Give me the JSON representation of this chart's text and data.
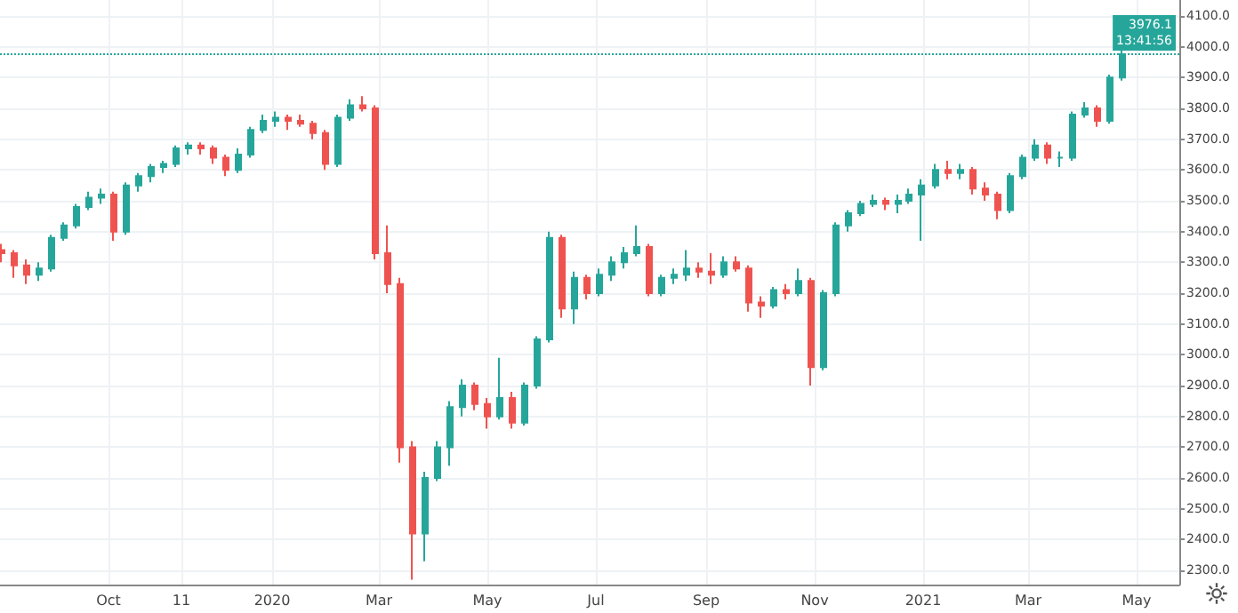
{
  "chart_data": {
    "type": "candlestick",
    "x": [
      "2019-08-02",
      "2019-08-09",
      "2019-08-16",
      "2019-08-23",
      "2019-08-30",
      "2019-09-06",
      "2019-09-13",
      "2019-09-20",
      "2019-09-27",
      "2019-10-04",
      "2019-10-11",
      "2019-10-18",
      "2019-10-25",
      "2019-11-01",
      "2019-11-08",
      "2019-11-15",
      "2019-11-22",
      "2019-11-29",
      "2019-12-06",
      "2019-12-13",
      "2019-12-20",
      "2019-12-27",
      "2020-01-03",
      "2020-01-10",
      "2020-01-17",
      "2020-01-24",
      "2020-01-31",
      "2020-02-07",
      "2020-02-14",
      "2020-02-21",
      "2020-02-28",
      "2020-03-06",
      "2020-03-13",
      "2020-03-20",
      "2020-03-27",
      "2020-04-03",
      "2020-04-10",
      "2020-04-17",
      "2020-04-24",
      "2020-05-01",
      "2020-05-08",
      "2020-05-15",
      "2020-05-22",
      "2020-05-29",
      "2020-06-05",
      "2020-06-12",
      "2020-06-19",
      "2020-06-26",
      "2020-07-03",
      "2020-07-10",
      "2020-07-17",
      "2020-07-24",
      "2020-07-31",
      "2020-08-07",
      "2020-08-14",
      "2020-08-21",
      "2020-08-28",
      "2020-09-04",
      "2020-09-11",
      "2020-09-18",
      "2020-09-25",
      "2020-10-02",
      "2020-10-09",
      "2020-10-16",
      "2020-10-23",
      "2020-10-30",
      "2020-11-06",
      "2020-11-13",
      "2020-11-20",
      "2020-11-27",
      "2020-12-04",
      "2020-12-11",
      "2020-12-18",
      "2020-12-24",
      "2020-12-31",
      "2021-01-08",
      "2021-01-15",
      "2021-01-22",
      "2021-01-29",
      "2021-02-05",
      "2021-02-12",
      "2021-02-19",
      "2021-02-26",
      "2021-03-05",
      "2021-03-12",
      "2021-03-19",
      "2021-03-26",
      "2021-04-02",
      "2021-04-09",
      "2021-04-16",
      "2021-04-23"
    ],
    "ohlc": [
      [
        3340,
        3360,
        3300,
        3330
      ],
      [
        3330,
        3340,
        3250,
        3290
      ],
      [
        3290,
        3310,
        3230,
        3260
      ],
      [
        3260,
        3300,
        3240,
        3280
      ],
      [
        3280,
        3390,
        3270,
        3380
      ],
      [
        3380,
        3430,
        3370,
        3420
      ],
      [
        3420,
        3490,
        3410,
        3480
      ],
      [
        3480,
        3530,
        3470,
        3510
      ],
      [
        3510,
        3540,
        3490,
        3520
      ],
      [
        3520,
        3530,
        3370,
        3400
      ],
      [
        3400,
        3560,
        3390,
        3550
      ],
      [
        3550,
        3590,
        3530,
        3580
      ],
      [
        3580,
        3620,
        3560,
        3610
      ],
      [
        3610,
        3630,
        3590,
        3620
      ],
      [
        3620,
        3680,
        3610,
        3670
      ],
      [
        3670,
        3690,
        3650,
        3680
      ],
      [
        3680,
        3690,
        3650,
        3670
      ],
      [
        3670,
        3680,
        3620,
        3640
      ],
      [
        3640,
        3650,
        3580,
        3600
      ],
      [
        3600,
        3670,
        3590,
        3650
      ],
      [
        3650,
        3740,
        3640,
        3730
      ],
      [
        3730,
        3780,
        3720,
        3760
      ],
      [
        3760,
        3790,
        3740,
        3770
      ],
      [
        3770,
        3780,
        3730,
        3760
      ],
      [
        3760,
        3780,
        3740,
        3750
      ],
      [
        3750,
        3760,
        3700,
        3720
      ],
      [
        3720,
        3730,
        3600,
        3620
      ],
      [
        3620,
        3780,
        3610,
        3770
      ],
      [
        3770,
        3830,
        3760,
        3810
      ],
      [
        3810,
        3840,
        3790,
        3800
      ],
      [
        3800,
        3810,
        3310,
        3330
      ],
      [
        3330,
        3420,
        3200,
        3230
      ],
      [
        3230,
        3250,
        2650,
        2700
      ],
      [
        2700,
        2720,
        2270,
        2420
      ],
      [
        2420,
        2620,
        2330,
        2600
      ],
      [
        2600,
        2720,
        2590,
        2700
      ],
      [
        2700,
        2850,
        2640,
        2830
      ],
      [
        2830,
        2920,
        2800,
        2900
      ],
      [
        2900,
        2910,
        2820,
        2840
      ],
      [
        2840,
        2860,
        2760,
        2800
      ],
      [
        2800,
        2990,
        2790,
        2860
      ],
      [
        2860,
        2880,
        2760,
        2780
      ],
      [
        2780,
        2910,
        2770,
        2900
      ],
      [
        2900,
        3060,
        2890,
        3050
      ],
      [
        3050,
        3400,
        3040,
        3380
      ],
      [
        3380,
        3390,
        3120,
        3150
      ],
      [
        3150,
        3270,
        3100,
        3250
      ],
      [
        3250,
        3260,
        3180,
        3200
      ],
      [
        3200,
        3280,
        3190,
        3260
      ],
      [
        3260,
        3320,
        3240,
        3300
      ],
      [
        3300,
        3350,
        3280,
        3330
      ],
      [
        3330,
        3420,
        3320,
        3350
      ],
      [
        3350,
        3360,
        3190,
        3200
      ],
      [
        3200,
        3260,
        3190,
        3250
      ],
      [
        3250,
        3280,
        3230,
        3260
      ],
      [
        3260,
        3340,
        3240,
        3280
      ],
      [
        3280,
        3300,
        3250,
        3270
      ],
      [
        3270,
        3330,
        3230,
        3260
      ],
      [
        3260,
        3320,
        3250,
        3300
      ],
      [
        3300,
        3320,
        3270,
        3280
      ],
      [
        3280,
        3290,
        3140,
        3170
      ],
      [
        3170,
        3190,
        3120,
        3160
      ],
      [
        3160,
        3220,
        3150,
        3210
      ],
      [
        3210,
        3230,
        3180,
        3200
      ],
      [
        3200,
        3280,
        3190,
        3240
      ],
      [
        3240,
        3250,
        2900,
        2960
      ],
      [
        2960,
        3210,
        2950,
        3200
      ],
      [
        3200,
        3430,
        3190,
        3420
      ],
      [
        3420,
        3470,
        3400,
        3460
      ],
      [
        3460,
        3500,
        3450,
        3490
      ],
      [
        3490,
        3520,
        3480,
        3500
      ],
      [
        3500,
        3510,
        3470,
        3490
      ],
      [
        3490,
        3520,
        3460,
        3500
      ],
      [
        3500,
        3540,
        3490,
        3520
      ],
      [
        3520,
        3570,
        3370,
        3550
      ],
      [
        3550,
        3620,
        3540,
        3600
      ],
      [
        3600,
        3630,
        3570,
        3590
      ],
      [
        3590,
        3620,
        3570,
        3600
      ],
      [
        3600,
        3610,
        3520,
        3540
      ],
      [
        3540,
        3560,
        3500,
        3520
      ],
      [
        3520,
        3530,
        3440,
        3470
      ],
      [
        3470,
        3590,
        3460,
        3580
      ],
      [
        3580,
        3650,
        3570,
        3640
      ],
      [
        3640,
        3700,
        3630,
        3680
      ],
      [
        3680,
        3690,
        3620,
        3640
      ],
      [
        3640,
        3660,
        3610,
        3640
      ],
      [
        3640,
        3790,
        3630,
        3780
      ],
      [
        3780,
        3820,
        3770,
        3800
      ],
      [
        3800,
        3810,
        3740,
        3760
      ],
      [
        3760,
        3910,
        3750,
        3900
      ],
      [
        3900,
        3990,
        3890,
        3976.1
      ]
    ],
    "colors": [
      "#ef5350",
      "#ef5350",
      "#ef5350",
      "#26a69a",
      "#26a69a",
      "#26a69a",
      "#26a69a",
      "#26a69a",
      "#26a69a",
      "#ef5350",
      "#26a69a",
      "#26a69a",
      "#26a69a",
      "#26a69a",
      "#26a69a",
      "#26a69a",
      "#ef5350",
      "#ef5350",
      "#ef5350",
      "#26a69a",
      "#26a69a",
      "#26a69a",
      "#26a69a",
      "#ef5350",
      "#ef5350",
      "#ef5350",
      "#ef5350",
      "#26a69a",
      "#26a69a",
      "#ef5350",
      "#ef5350",
      "#ef5350",
      "#ef5350",
      "#ef5350",
      "#26a69a",
      "#26a69a",
      "#26a69a",
      "#26a69a",
      "#ef5350",
      "#ef5350",
      "#26a69a",
      "#ef5350",
      "#26a69a",
      "#26a69a",
      "#26a69a",
      "#ef5350",
      "#26a69a",
      "#ef5350",
      "#26a69a",
      "#26a69a",
      "#26a69a",
      "#26a69a",
      "#ef5350",
      "#26a69a",
      "#26a69a",
      "#26a69a",
      "#ef5350",
      "#ef5350",
      "#26a69a",
      "#ef5350",
      "#ef5350",
      "#ef5350",
      "#26a69a",
      "#ef5350",
      "#26a69a",
      "#ef5350",
      "#26a69a",
      "#26a69a",
      "#26a69a",
      "#26a69a",
      "#26a69a",
      "#ef5350",
      "#26a69a",
      "#26a69a",
      "#26a69a",
      "#26a69a",
      "#ef5350",
      "#26a69a",
      "#ef5350",
      "#ef5350",
      "#ef5350",
      "#26a69a",
      "#26a69a",
      "#26a69a",
      "#ef5350",
      "#26a69a",
      "#26a69a",
      "#26a69a",
      "#ef5350",
      "#26a69a",
      "#26a69a"
    ],
    "xlim": [
      "2019-08-01",
      "2021-05-25"
    ],
    "xticks": [
      {
        "value": "2019-10-01",
        "label": "Oct"
      },
      {
        "value": "2019-11-11",
        "label": "11"
      },
      {
        "value": "2020-01-01",
        "label": "2020"
      },
      {
        "value": "2020-03-01",
        "label": "Mar"
      },
      {
        "value": "2020-05-01",
        "label": "May"
      },
      {
        "value": "2020-07-01",
        "label": "Jul"
      },
      {
        "value": "2020-09-01",
        "label": "Sep"
      },
      {
        "value": "2020-11-01",
        "label": "Nov"
      },
      {
        "value": "2021-01-01",
        "label": "2021"
      },
      {
        "value": "2021-03-01",
        "label": "Mar"
      },
      {
        "value": "2021-05-01",
        "label": "May"
      }
    ],
    "ylim": [
      2254,
      4152
    ],
    "yticks": [
      {
        "value": 2300,
        "label": "2300.0"
      },
      {
        "value": 2400,
        "label": "2400.0"
      },
      {
        "value": 2500,
        "label": "2500.0"
      },
      {
        "value": 2600,
        "label": "2600.0"
      },
      {
        "value": 2700,
        "label": "2700.0"
      },
      {
        "value": 2800,
        "label": "2800.0"
      },
      {
        "value": 2900,
        "label": "2900.0"
      },
      {
        "value": 3000,
        "label": "3000.0"
      },
      {
        "value": 3100,
        "label": "3100.0"
      },
      {
        "value": 3200,
        "label": "3200.0"
      },
      {
        "value": 3300,
        "label": "3300.0"
      },
      {
        "value": 3400,
        "label": "3400.0"
      },
      {
        "value": 3500,
        "label": "3500.0"
      },
      {
        "value": 3600,
        "label": "3600.0"
      },
      {
        "value": 3700,
        "label": "3700.0"
      },
      {
        "value": 3800,
        "label": "3800.0"
      },
      {
        "value": 3900,
        "label": "3900.0"
      },
      {
        "value": 4000,
        "label": "4000.0"
      },
      {
        "value": 4100,
        "label": "4100.0"
      }
    ],
    "ref_lines": [
      {
        "axis": "y",
        "value": 3976.1,
        "label": "3976.1",
        "color": "#26a69a",
        "line_style": "dotted"
      }
    ],
    "annotations": [
      "13:41:56"
    ],
    "grid": true
  }
}
